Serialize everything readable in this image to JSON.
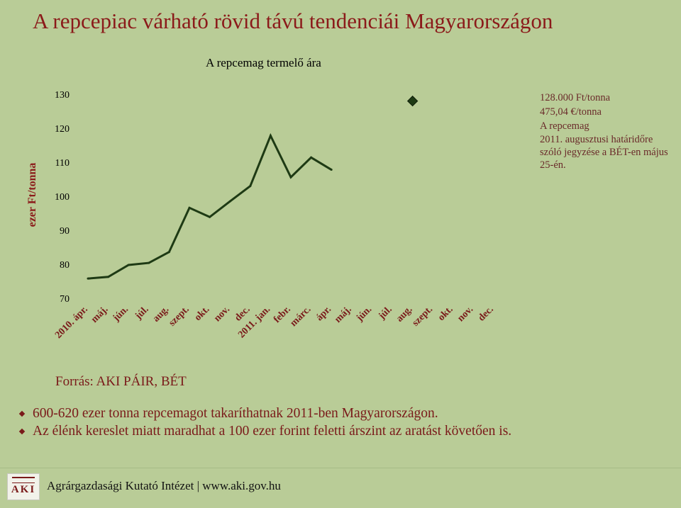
{
  "slide": {
    "title": "A repcepiac várható rövid távú tendenciái Magyarországon"
  },
  "chart_data": {
    "type": "line",
    "title": "A repcemag termelő ára",
    "ylabel": "ezer Ft/tonna",
    "xlabel": "",
    "ylim": [
      70,
      130
    ],
    "yticks": [
      70,
      80,
      90,
      100,
      110,
      120,
      130
    ],
    "categories": [
      "2010. ápr.",
      "máj.",
      "jún.",
      "júl.",
      "aug.",
      "szept.",
      "okt.",
      "nov.",
      "dec.",
      "2011. jan.",
      "febr.",
      "márc.",
      "ápr.",
      "máj.",
      "jún.",
      "júl.",
      "aug.",
      "szept.",
      "okt.",
      "nov.",
      "dec."
    ],
    "series": [
      {
        "values": [
          75.8,
          76.3,
          79.8,
          80.4,
          83.6,
          96.6,
          93.9,
          98.5,
          103.0,
          117.8,
          105.6,
          111.4,
          107.8,
          null,
          null,
          null,
          null,
          null,
          null,
          null,
          null
        ],
        "color": "#1e3a14"
      }
    ],
    "marker": {
      "category_index": 16,
      "value": 128.0,
      "shape": "diamond",
      "color": "#1e3a14"
    },
    "grid": false,
    "legend": "none"
  },
  "note": {
    "line1": "128.000 Ft/tonna",
    "line2": "475,04 €/tonna",
    "line3": "A repcemag",
    "line4": "2011. augusztusi határidőre szóló jegyzése a BÉT-en május 25-én."
  },
  "source": "Forrás: AKI PÁIR, BÉT",
  "bullets": [
    "600-620 ezer tonna repcemagot takaríthatnak 2011-ben Magyarországon.",
    "Az élénk kereslet miatt maradhat a 100 ezer forint feletti árszint az aratást követően is."
  ],
  "footer": {
    "logo_text": "AKI",
    "text": "Agrárgazdasági Kutató Intézet | www.aki.gov.hu"
  }
}
